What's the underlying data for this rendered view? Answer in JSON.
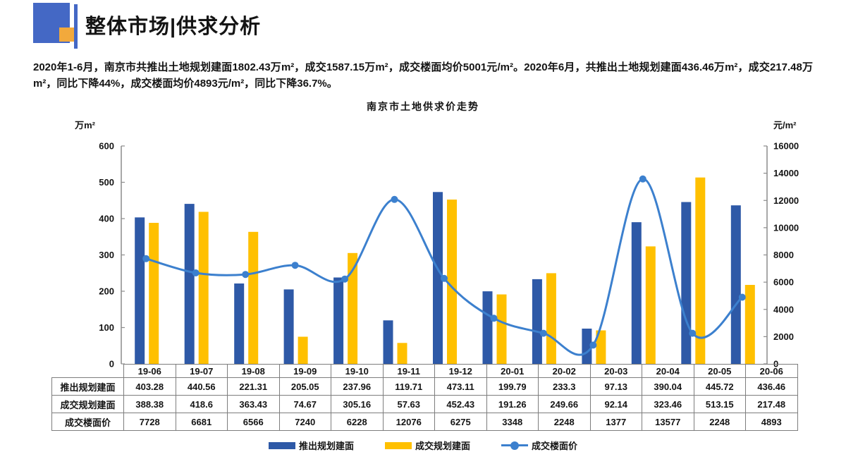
{
  "header": {
    "title": "整体市场|供求分析"
  },
  "summary": {
    "text": "2020年1-6月，南京市共推出土地规划建面1802.43万m²，成交1587.15万m²，成交楼面均价5001元/m²。2020年6月，共推出土地规划建面436.46万m²，成交217.48万m²，同比下降44%，成交楼面均价4893元/m²，同比下降36.7%。"
  },
  "chart_data": {
    "type": "bar",
    "subtype": "combo-bar-line",
    "title": "南京市土地供求价走势",
    "categories": [
      "19-06",
      "19-07",
      "19-08",
      "19-09",
      "19-10",
      "19-11",
      "19-12",
      "20-01",
      "20-02",
      "20-03",
      "20-04",
      "20-05",
      "20-06"
    ],
    "series": [
      {
        "name": "推出规划建面",
        "type": "bar",
        "axis": "left",
        "color": "#2E59A7",
        "values": [
          403.28,
          440.56,
          221.31,
          205.05,
          237.96,
          119.71,
          473.11,
          199.79,
          233.3,
          97.13,
          390.04,
          445.72,
          436.46
        ]
      },
      {
        "name": "成交规划建面",
        "type": "bar",
        "axis": "left",
        "color": "#FFC000",
        "values": [
          388.38,
          418.6,
          363.43,
          74.67,
          305.16,
          57.63,
          452.43,
          191.26,
          249.66,
          92.14,
          323.46,
          513.15,
          217.48
        ]
      },
      {
        "name": "成交楼面价",
        "type": "line",
        "axis": "right",
        "color": "#3C80CE",
        "values": [
          7728,
          6681,
          6566,
          7240,
          6228,
          12076,
          6275,
          3348,
          2248,
          1377,
          13577,
          2248,
          4893
        ]
      }
    ],
    "left_axis": {
      "unit": "万m²",
      "min": 0,
      "max": 600,
      "step": 100,
      "ticks": [
        0,
        100,
        200,
        300,
        400,
        500,
        600
      ]
    },
    "right_axis": {
      "unit": "元/m²",
      "min": 0,
      "max": 16000,
      "step": 2000,
      "ticks": [
        0,
        2000,
        4000,
        6000,
        8000,
        10000,
        12000,
        14000,
        16000
      ]
    },
    "grid": false,
    "legend_position": "bottom"
  },
  "theme": {
    "logo_blue": "#4468C5",
    "logo_orange": "#F2A93C",
    "bar_blue": "#2E59A7",
    "bar_yellow": "#FFC000",
    "line_blue": "#3C80CE",
    "text_color": "#141414",
    "axis_color": "#8C8C8C",
    "table_border": "#7D7D7D"
  }
}
